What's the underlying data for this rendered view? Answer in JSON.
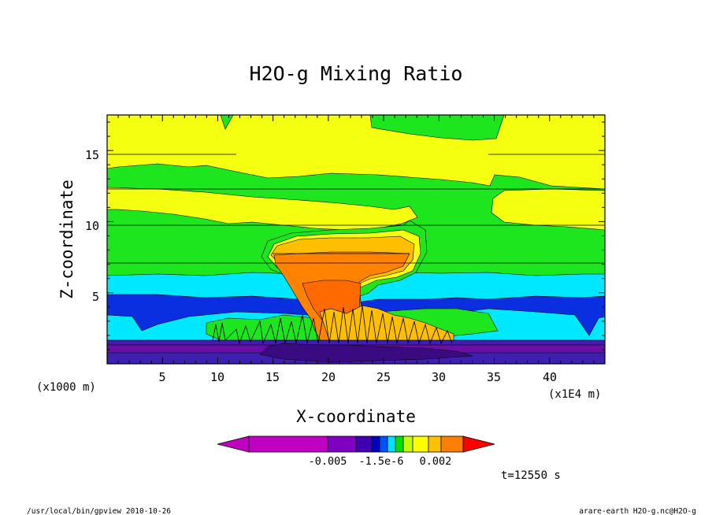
{
  "chart_data": {
    "type": "heatmap",
    "title": "H2O-g Mixing Ratio",
    "xlabel": "X-coordinate",
    "ylabel": "Z-coordinate",
    "x_unit": "(x1E4 m)",
    "y_unit": "(x1000 m)",
    "xlim": [
      0,
      45
    ],
    "ylim": [
      0,
      17.5
    ],
    "x_ticks": [
      "5",
      "10",
      "15",
      "20",
      "25",
      "30",
      "35",
      "40"
    ],
    "y_ticks": [
      "5",
      "10",
      "15"
    ],
    "colorbar": {
      "labels": [
        "-0.005",
        "-1.5e-6",
        "0.002"
      ],
      "colors": [
        "#c000c0",
        "#8000c0",
        "#4000b0",
        "#0000c0",
        "#0050ff",
        "#00e0ff",
        "#00e000",
        "#c0ff00",
        "#ffff00",
        "#ffc000",
        "#ff8000",
        "#ff0000"
      ]
    },
    "levels": {
      "purple": "#6a0fa6",
      "indigo": "#3f1fb0",
      "blue": "#0a2fe0",
      "cyan": "#00e8ff",
      "green": "#1ee61e",
      "yellow": "#f5ff10",
      "gold": "#ffbf00",
      "orange": "#ff8200",
      "dark_orange": "#ff6a00"
    }
  },
  "footer": {
    "time": "t=12550 s",
    "left": "/usr/local/bin/gpview  2010-10-26",
    "right": "arare-earth_H2O-g.nc@H2O-g"
  }
}
